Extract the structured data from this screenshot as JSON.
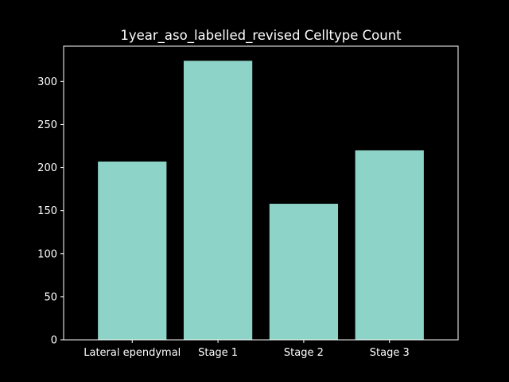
{
  "chart_data": {
    "type": "bar",
    "title": "1year_aso_labelled_revised Celltype Count",
    "xlabel": "",
    "ylabel": "",
    "categories": [
      "Lateral ependymal",
      "Stage 1",
      "Stage 2",
      "Stage 3"
    ],
    "values": [
      207,
      324,
      158,
      220
    ],
    "ylim": [
      0,
      341
    ],
    "yticks": [
      0,
      50,
      100,
      150,
      200,
      250,
      300
    ],
    "grid": false,
    "legend": "none",
    "colors": {
      "background": "#000000",
      "bar": "#8dd3c7",
      "axis": "#ffffff",
      "text": "#ffffff"
    }
  }
}
